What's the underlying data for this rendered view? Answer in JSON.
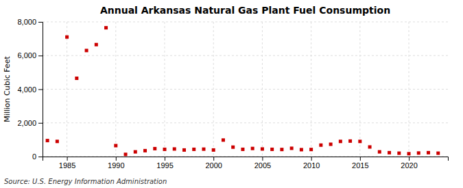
{
  "chart_data": {
    "type": "scatter",
    "title": "Annual Arkansas Natural Gas Plant Fuel Consumption",
    "y_label": "Million Cubic Feet",
    "source": "Source: U.S. Energy Information Administration",
    "x": [
      1983,
      1984,
      1985,
      1986,
      1987,
      1988,
      1989,
      1990,
      1991,
      1992,
      1993,
      1994,
      1995,
      1996,
      1997,
      1998,
      1999,
      2000,
      2001,
      2002,
      2003,
      2004,
      2005,
      2006,
      2007,
      2008,
      2009,
      2010,
      2011,
      2012,
      2013,
      2014,
      2015,
      2016,
      2017,
      2018,
      2019,
      2020,
      2021,
      2022,
      2023
    ],
    "values": [
      950,
      900,
      7100,
      4650,
      6300,
      6650,
      7650,
      650,
      130,
      280,
      350,
      470,
      430,
      450,
      390,
      430,
      440,
      390,
      980,
      560,
      430,
      480,
      450,
      430,
      420,
      490,
      410,
      420,
      680,
      730,
      900,
      920,
      900,
      570,
      280,
      230,
      200,
      170,
      210,
      230,
      200
    ],
    "color": "#cc0000",
    "marker": "square",
    "xlim": [
      1982.5,
      2024
    ],
    "ylim": [
      0,
      8000
    ],
    "xticks": [
      1985,
      1990,
      1995,
      2000,
      2005,
      2010,
      2015,
      2020
    ],
    "yticks": [
      0,
      {
        "value": 2000,
        "label": "2,000"
      },
      {
        "value": 4000,
        "label": "4,000"
      },
      {
        "value": 6000,
        "label": "6,000"
      },
      {
        "value": 8000,
        "label": "8,000"
      }
    ],
    "grid": true
  }
}
